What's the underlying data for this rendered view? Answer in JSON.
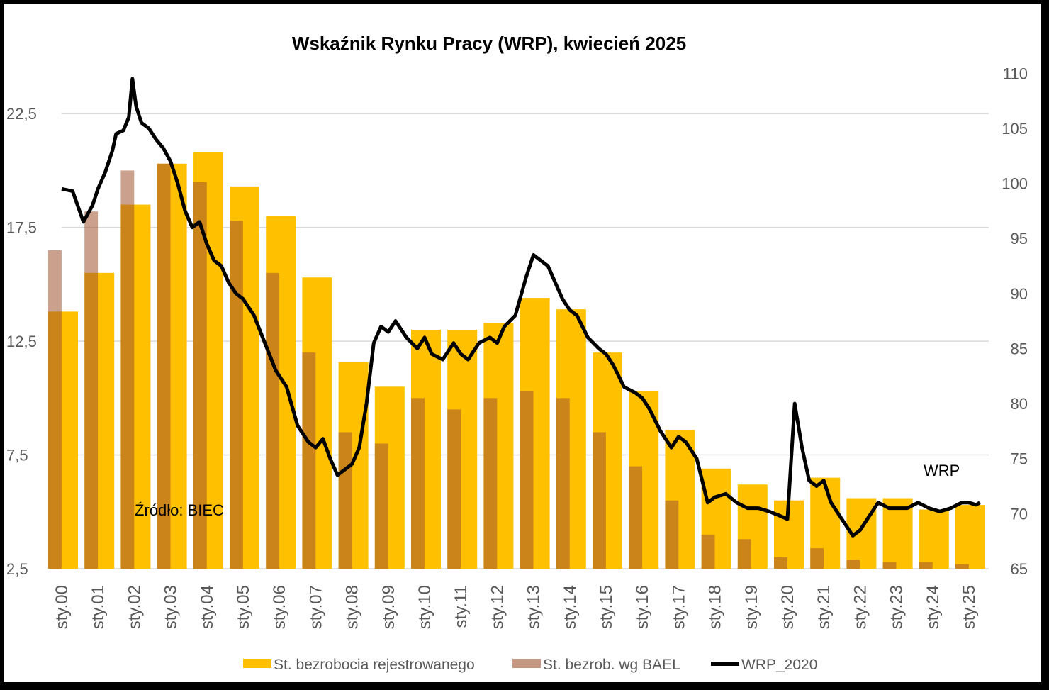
{
  "chart_data": {
    "type": "bar",
    "title": "Wskaźnik Rynku Pracy (WRP), kwiecień 2025",
    "source_note": "Źródło: BIEC",
    "line_label": "WRP",
    "y_left": {
      "ticks": [
        "2,5",
        "7,5",
        "12,5",
        "17,5",
        "22,5"
      ],
      "values": [
        2.5,
        7.5,
        12.5,
        17.5,
        22.5
      ],
      "range": [
        2.5,
        25
      ]
    },
    "y_right": {
      "ticks": [
        "65",
        "70",
        "75",
        "80",
        "85",
        "90",
        "95",
        "100",
        "105",
        "110"
      ],
      "values": [
        65,
        70,
        75,
        80,
        85,
        90,
        95,
        100,
        105,
        110
      ],
      "range": [
        65,
        111.5
      ]
    },
    "x_ticks": [
      "sty.00",
      "sty.01",
      "sty.02",
      "sty.03",
      "sty.04",
      "sty.05",
      "sty.06",
      "sty.07",
      "sty.08",
      "sty.09",
      "sty.10",
      "sty.11",
      "sty.12",
      "sty.13",
      "sty.14",
      "sty.15",
      "sty.16",
      "sty.17",
      "sty.18",
      "sty.19",
      "sty.20",
      "sty.21",
      "sty.22",
      "sty.23",
      "sty.24",
      "sty.25"
    ],
    "grid": true,
    "legend_position": "bottom",
    "series": [
      {
        "name": "St. bezrobocia rejestrowanego",
        "kind": "bar",
        "axis": "left",
        "color": "#FFC000",
        "x": [
          "sty.00",
          "sty.01",
          "sty.02",
          "sty.03",
          "sty.04",
          "sty.05",
          "sty.06",
          "sty.07",
          "sty.08",
          "sty.09",
          "sty.10",
          "sty.11",
          "sty.12",
          "sty.13",
          "sty.14",
          "sty.15",
          "sty.16",
          "sty.17",
          "sty.18",
          "sty.19",
          "sty.20",
          "sty.21",
          "sty.22",
          "sty.23",
          "sty.24",
          "sty.25"
        ],
        "values": [
          13.8,
          15.5,
          18.5,
          20.3,
          20.8,
          19.3,
          18.0,
          15.3,
          11.6,
          10.5,
          13.0,
          13.0,
          13.3,
          14.4,
          13.9,
          12.0,
          10.3,
          8.6,
          6.9,
          6.2,
          5.5,
          6.5,
          5.6,
          5.6,
          5.1,
          5.3
        ]
      },
      {
        "name": "St. bezrob. wg BAEL",
        "kind": "bar",
        "axis": "left",
        "color": "#A0522D",
        "x": [
          "sty.00",
          "sty.01",
          "sty.02",
          "sty.03",
          "sty.04",
          "sty.05",
          "sty.06",
          "sty.07",
          "sty.08",
          "sty.09",
          "sty.10",
          "sty.11",
          "sty.12",
          "sty.13",
          "sty.14",
          "sty.15",
          "sty.16",
          "sty.17",
          "sty.18",
          "sty.19",
          "sty.20",
          "sty.21",
          "sty.22",
          "sty.23",
          "sty.24",
          "sty.25"
        ],
        "values": [
          16.5,
          18.2,
          20.0,
          20.3,
          19.5,
          17.8,
          15.5,
          12.0,
          8.5,
          8.0,
          10.0,
          9.5,
          10.0,
          10.3,
          10.0,
          8.5,
          7.0,
          5.5,
          4.0,
          3.8,
          3.0,
          3.4,
          2.9,
          2.8,
          2.8,
          2.7
        ]
      },
      {
        "name": "WRP_2020",
        "kind": "line",
        "axis": "right",
        "color": "#000000",
        "x": [
          0,
          0.3,
          0.6,
          0.85,
          1.0,
          1.2,
          1.4,
          1.5,
          1.7,
          1.85,
          1.95,
          2.05,
          2.2,
          2.4,
          2.6,
          2.8,
          3.0,
          3.2,
          3.4,
          3.6,
          3.8,
          4.0,
          4.2,
          4.4,
          4.6,
          4.8,
          5.0,
          5.3,
          5.6,
          5.9,
          6.2,
          6.5,
          6.8,
          7.0,
          7.2,
          7.4,
          7.6,
          7.8,
          8.0,
          8.2,
          8.4,
          8.6,
          8.8,
          9.0,
          9.2,
          9.5,
          9.8,
          10.0,
          10.2,
          10.5,
          10.8,
          11.0,
          11.2,
          11.5,
          11.8,
          12.0,
          12.2,
          12.5,
          12.8,
          13.0,
          13.2,
          13.4,
          13.6,
          13.8,
          14.0,
          14.2,
          14.5,
          14.8,
          15.0,
          15.2,
          15.5,
          15.8,
          16.0,
          16.2,
          16.5,
          16.8,
          17.0,
          17.2,
          17.5,
          17.8,
          18.0,
          18.3,
          18.6,
          18.9,
          19.2,
          19.5,
          19.8,
          20.0,
          20.2,
          20.4,
          20.6,
          20.8,
          21.0,
          21.2,
          21.5,
          21.8,
          22.0,
          22.2,
          22.5,
          22.8,
          23.0,
          23.3,
          23.6,
          23.9,
          24.2,
          24.5,
          24.8,
          25.0,
          25.2,
          25.3
        ],
        "values": [
          99.5,
          99.3,
          96.5,
          98.0,
          99.5,
          101.0,
          103.0,
          104.5,
          104.8,
          106.0,
          109.5,
          107.0,
          105.5,
          105.0,
          104.0,
          103.2,
          102.0,
          100.0,
          97.5,
          96.0,
          96.5,
          94.5,
          93.0,
          92.5,
          91.0,
          90.0,
          89.5,
          88.0,
          85.5,
          83.0,
          81.5,
          78.0,
          76.5,
          76.0,
          76.8,
          75.0,
          73.5,
          74.0,
          74.5,
          76.0,
          80.0,
          85.5,
          87.0,
          86.5,
          87.5,
          86.0,
          85.0,
          86.0,
          84.5,
          84.0,
          85.5,
          84.5,
          84.0,
          85.5,
          86.0,
          85.5,
          87.0,
          88.0,
          91.5,
          93.5,
          93.0,
          92.5,
          91.0,
          89.5,
          88.5,
          88.0,
          86.0,
          85.0,
          84.5,
          83.5,
          81.5,
          81.0,
          80.5,
          79.5,
          77.5,
          76.0,
          77.0,
          76.5,
          75.0,
          71.0,
          71.5,
          71.8,
          71.0,
          70.5,
          70.5,
          70.2,
          69.8,
          69.5,
          80.0,
          76.0,
          73.0,
          72.5,
          73.0,
          71.0,
          69.5,
          68.0,
          68.5,
          69.5,
          71.0,
          70.5,
          70.5,
          70.5,
          71.0,
          70.5,
          70.2,
          70.5,
          71.0,
          71.0,
          70.8,
          71.0
        ]
      }
    ]
  }
}
